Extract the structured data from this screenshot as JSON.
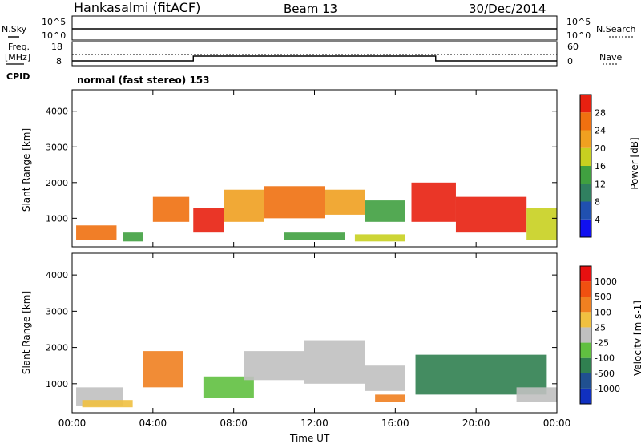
{
  "header": {
    "station": "Hankasalmi (fitACF)",
    "beam": "Beam 13",
    "date": "30/Dec/2014"
  },
  "top_panels": {
    "nsky_label": "N.Sky",
    "nsearch_label": "N.Search",
    "nsky_ticks": [
      "10^5",
      "10^0"
    ],
    "nsearch_ticks": [
      "10^5",
      "10^0"
    ],
    "freq_label_1": "Freq.",
    "freq_label_2": "[MHz]",
    "freq_ticks": [
      "18",
      "8"
    ],
    "nave_label": "Nave",
    "nave_ticks": [
      "60",
      "0"
    ],
    "cpid_label": "CPID",
    "cpid_text": "normal (fast stereo) 153"
  },
  "chart_data": [
    {
      "type": "heatmap",
      "name": "power",
      "ylabel": "Slant Range [km]",
      "y_ticks": [
        1000,
        2000,
        3000,
        4000
      ],
      "ylim": [
        200,
        4600
      ],
      "colorbar_label": "Power [dB]",
      "colorbar_ticks": [
        "4",
        "8",
        "12",
        "16",
        "20",
        "24",
        "28"
      ],
      "colorbar_colors": [
        "#1010f0",
        "#2050b0",
        "#308060",
        "#40a040",
        "#c8d020",
        "#f0a020",
        "#f07010",
        "#e82010"
      ],
      "regions": [
        {
          "t0": 0.2,
          "t1": 2.2,
          "r0": 400,
          "r1": 800,
          "level": 6
        },
        {
          "t0": 2.5,
          "t1": 3.5,
          "r0": 350,
          "r1": 600,
          "level": 3
        },
        {
          "t0": 4.0,
          "t1": 5.8,
          "r0": 900,
          "r1": 1600,
          "level": 6
        },
        {
          "t0": 6.0,
          "t1": 7.5,
          "r0": 600,
          "r1": 1300,
          "level": 7
        },
        {
          "t0": 7.5,
          "t1": 9.5,
          "r0": 900,
          "r1": 1800,
          "level": 5
        },
        {
          "t0": 9.5,
          "t1": 12.5,
          "r0": 1000,
          "r1": 1900,
          "level": 6
        },
        {
          "t0": 12.5,
          "t1": 14.5,
          "r0": 1100,
          "r1": 1800,
          "level": 5
        },
        {
          "t0": 14.5,
          "t1": 16.5,
          "r0": 900,
          "r1": 1500,
          "level": 3
        },
        {
          "t0": 16.8,
          "t1": 19.0,
          "r0": 900,
          "r1": 2000,
          "level": 7
        },
        {
          "t0": 19.0,
          "t1": 22.5,
          "r0": 600,
          "r1": 1600,
          "level": 7
        },
        {
          "t0": 22.5,
          "t1": 24.0,
          "r0": 400,
          "r1": 1300,
          "level": 4
        },
        {
          "t0": 10.5,
          "t1": 13.5,
          "r0": 400,
          "r1": 600,
          "level": 3
        },
        {
          "t0": 14.0,
          "t1": 16.5,
          "r0": 350,
          "r1": 550,
          "level": 4
        }
      ]
    },
    {
      "type": "heatmap",
      "name": "velocity",
      "ylabel": "Slant Range [km]",
      "y_ticks": [
        1000,
        2000,
        3000,
        4000
      ],
      "ylim": [
        200,
        4600
      ],
      "colorbar_label": "Velocity [m s-1]",
      "colorbar_ticks": [
        "1000",
        "500",
        "100",
        "25",
        "-25",
        "-100",
        "-500",
        "-1000"
      ],
      "colorbar_colors": [
        "#1030c0",
        "#205090",
        "#308050",
        "#60c040",
        "#c0c0c0",
        "#f0c040",
        "#f08020",
        "#f05010",
        "#e81010"
      ],
      "regions": [
        {
          "t0": 0.2,
          "t1": 2.5,
          "r0": 400,
          "r1": 900,
          "level": 4
        },
        {
          "t0": 3.5,
          "t1": 5.5,
          "r0": 900,
          "r1": 1900,
          "level": 6
        },
        {
          "t0": 6.5,
          "t1": 9.0,
          "r0": 600,
          "r1": 1200,
          "level": 3
        },
        {
          "t0": 8.5,
          "t1": 11.5,
          "r0": 1100,
          "r1": 1900,
          "level": 4
        },
        {
          "t0": 11.5,
          "t1": 14.5,
          "r0": 1000,
          "r1": 2200,
          "level": 4
        },
        {
          "t0": 14.5,
          "t1": 16.5,
          "r0": 800,
          "r1": 1500,
          "level": 4
        },
        {
          "t0": 17.0,
          "t1": 23.5,
          "r0": 700,
          "r1": 1800,
          "level": 2
        },
        {
          "t0": 0.5,
          "t1": 3.0,
          "r0": 350,
          "r1": 550,
          "level": 5
        },
        {
          "t0": 15.0,
          "t1": 16.5,
          "r0": 500,
          "r1": 700,
          "level": 6
        },
        {
          "t0": 22.0,
          "t1": 24.0,
          "r0": 500,
          "r1": 900,
          "level": 4
        }
      ]
    }
  ],
  "x_axis": {
    "label": "Time UT",
    "ticks": [
      "00:00",
      "04:00",
      "08:00",
      "12:00",
      "16:00",
      "20:00",
      "00:00"
    ],
    "xlim": [
      0,
      24
    ]
  }
}
